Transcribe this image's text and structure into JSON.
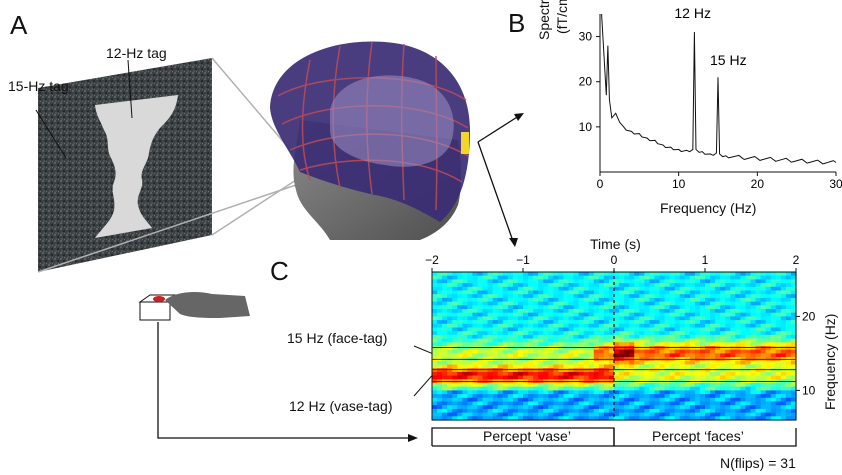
{
  "panels": {
    "a": "A",
    "b": "B",
    "c": "C"
  },
  "panel_a": {
    "tag_15": "15-Hz tag",
    "tag_12": "12-Hz tag"
  },
  "chart_data": [
    {
      "type": "line",
      "ylabel_line1": "Spectral density",
      "ylabel_line2": "(fT/cm/√Hz)",
      "xlabel": "Frequency (Hz)",
      "xlim": [
        0,
        30
      ],
      "ylim": [
        0,
        35
      ],
      "xticks": [
        "0",
        "10",
        "20",
        "30"
      ],
      "yticks": [
        "10",
        "20",
        "30"
      ],
      "x": [
        0.2,
        0.5,
        0.8,
        1.0,
        1.2,
        1.5,
        2,
        2.5,
        3,
        4,
        5,
        6,
        7,
        8,
        9,
        10,
        11,
        11.8,
        12,
        12.2,
        13,
        14,
        14.8,
        15,
        15.2,
        16,
        18,
        20,
        22,
        24,
        26,
        28,
        30
      ],
      "y": [
        35,
        26,
        17,
        28,
        16,
        12,
        13,
        11,
        10,
        9,
        8.5,
        7.5,
        7.0,
        6.0,
        5.5,
        5.0,
        4.8,
        5.0,
        31,
        5.0,
        4.5,
        4.0,
        4.2,
        21,
        4.0,
        3.6,
        3.2,
        3.0,
        2.8,
        2.6,
        2.4,
        2.2,
        2.1
      ],
      "annotations": [
        {
          "text": "12 Hz",
          "x": 12,
          "y": 31
        },
        {
          "text": "15 Hz",
          "x": 15,
          "y": 21
        }
      ]
    },
    {
      "type": "heatmap",
      "xlabel": "Time (s)",
      "ylabel": "Frequency (Hz)",
      "xlim": [
        -2,
        2
      ],
      "ylim": [
        6,
        26
      ],
      "xticks": [
        "−2",
        "−1",
        "0",
        "1",
        "2"
      ],
      "yticks": [
        "20",
        "10"
      ],
      "rows": [
        {
          "label": "15 Hz (face-tag)",
          "freq": 15
        },
        {
          "label": "12 Hz (vase-tag)",
          "freq": 12
        }
      ],
      "percepts": [
        "Percept ‘vase’",
        "Percept ‘faces’"
      ],
      "n_flips": "N(flips) = 31"
    }
  ]
}
